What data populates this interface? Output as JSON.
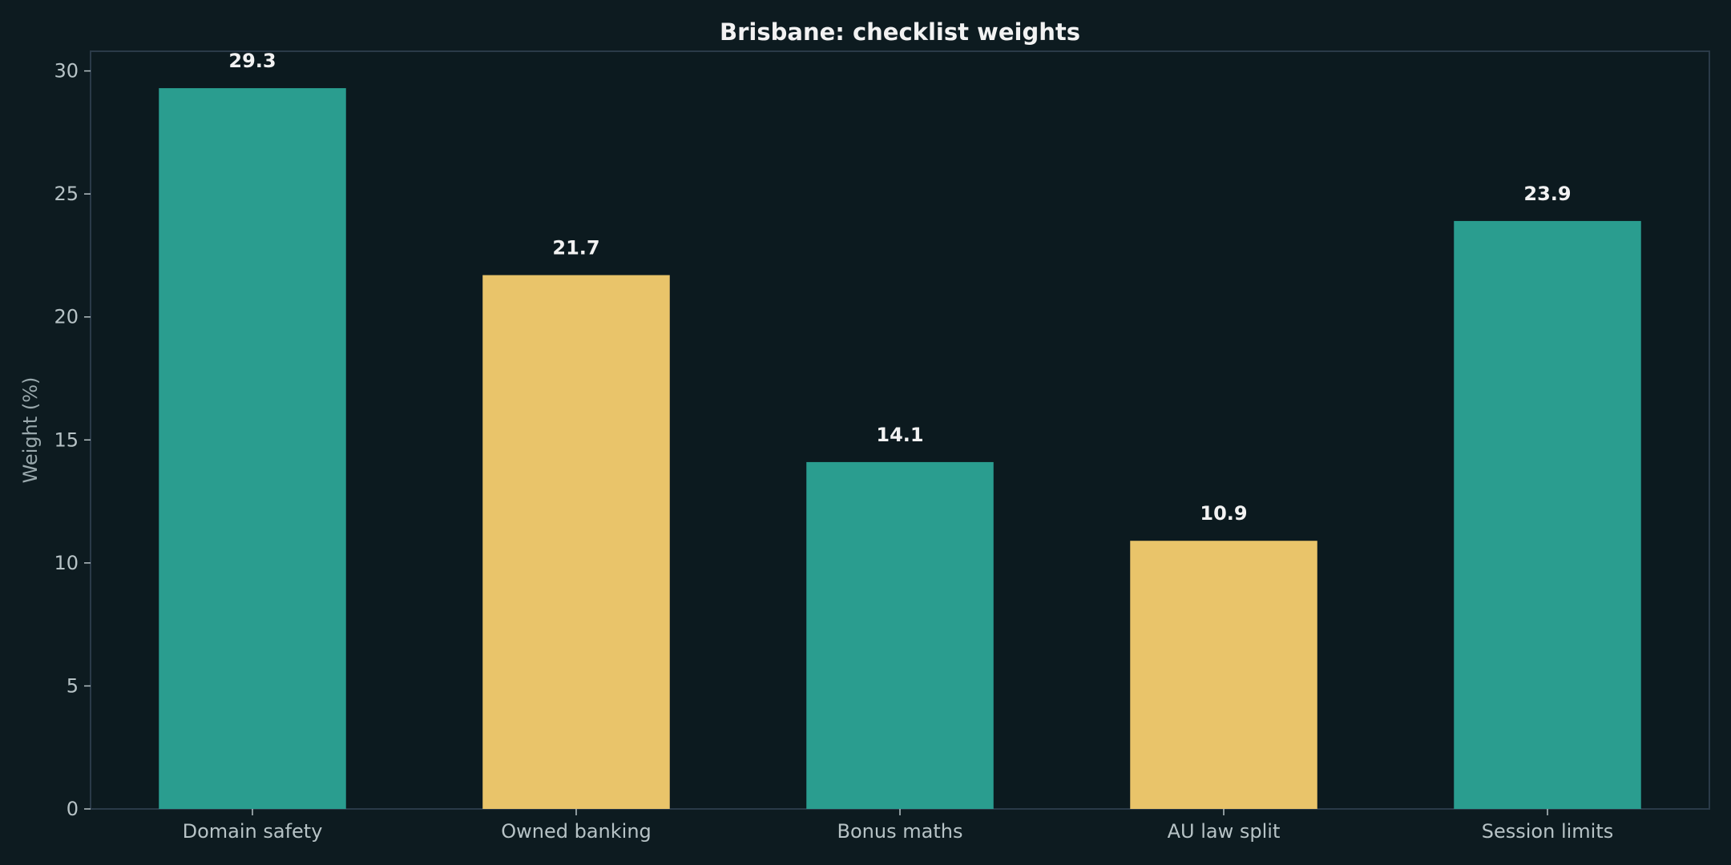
{
  "chart_data": {
    "type": "bar",
    "title": "Brisbane: checklist weights",
    "xlabel": "",
    "ylabel": "Weight (%)",
    "categories": [
      "Domain safety",
      "Owned banking",
      "Bonus maths",
      "AU law split",
      "Session limits"
    ],
    "values": [
      29.3,
      21.7,
      14.1,
      10.9,
      23.9
    ],
    "value_labels": [
      "29.3",
      "21.7",
      "14.1",
      "10.9",
      "23.9"
    ],
    "bar_colors": [
      "#2a9d8f",
      "#e9c46a",
      "#2a9d8f",
      "#e9c46a",
      "#2a9d8f"
    ],
    "ylim": [
      0,
      30.8
    ],
    "yticks": [
      0,
      5,
      10,
      15,
      20,
      25,
      30
    ],
    "ytick_labels": [
      "0",
      "5",
      "10",
      "15",
      "20",
      "25",
      "30"
    ],
    "grid": false,
    "legend": "none"
  },
  "colors": {
    "background": "#0d1b20",
    "plot_background": "#0c1a1f",
    "frame": "#2a3a48",
    "text": "#f2f2f2",
    "tick_text": "#b7c3c6",
    "axis_text": "#9aa9ad"
  }
}
